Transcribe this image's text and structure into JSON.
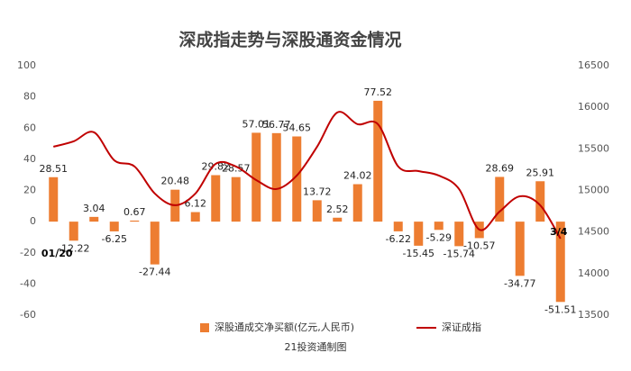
{
  "chart_data": {
    "type": "bar+line",
    "title": "深成指走势与深股通资金情况",
    "source": "21投资通制图",
    "categories": [
      "01/20",
      null,
      null,
      null,
      null,
      null,
      null,
      null,
      null,
      null,
      null,
      null,
      null,
      null,
      null,
      null,
      null,
      null,
      null,
      null,
      null,
      null,
      null,
      null,
      null,
      "3/4"
    ],
    "series": [
      {
        "name": "深股通成交净买额(亿元,人民币)",
        "type": "bar",
        "color": "#ED7D31",
        "axis": "y",
        "values": [
          28.51,
          -12.22,
          3.04,
          -6.25,
          0.67,
          -27.44,
          20.48,
          6.12,
          29.82,
          28.57,
          57.01,
          56.77,
          54.65,
          13.72,
          2.52,
          24.02,
          77.52,
          -6.22,
          -15.45,
          -5.29,
          -15.74,
          -10.57,
          28.69,
          -34.77,
          25.91,
          -51.51
        ]
      },
      {
        "name": "深证成指",
        "type": "line",
        "color": "#C00000",
        "axis": "y2",
        "values": [
          15526,
          15591,
          15699,
          15363,
          15288,
          14963,
          14822,
          14963,
          15320,
          15288,
          15125,
          15017,
          15179,
          15526,
          15938,
          15797,
          15797,
          15288,
          15233,
          15179,
          15017,
          14529,
          14746,
          14930,
          14822,
          14421
        ]
      }
    ],
    "ylim": [
      -60,
      100
    ],
    "yticks": [
      -60,
      -40,
      -20,
      0,
      20,
      40,
      60,
      80,
      100
    ],
    "y2lim": [
      13500,
      16500
    ],
    "y2ticks": [
      13500,
      14000,
      14500,
      15000,
      15500,
      16000,
      16500
    ],
    "grid": false,
    "legend": "bottom"
  }
}
